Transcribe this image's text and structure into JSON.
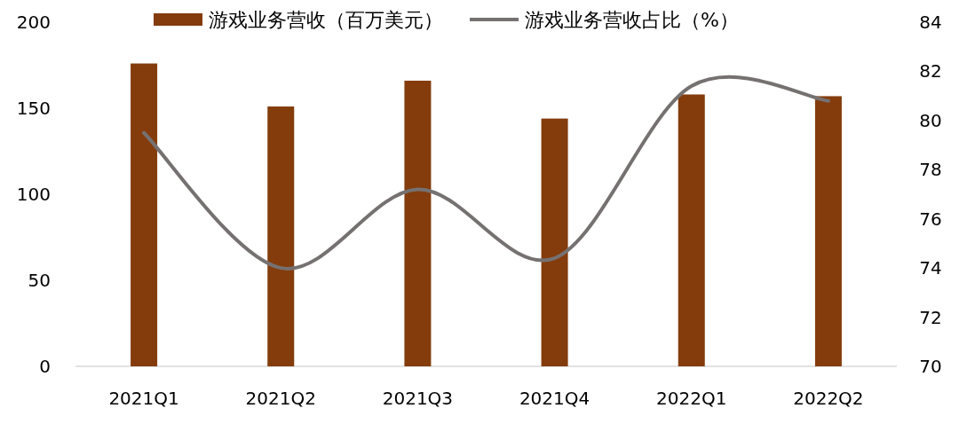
{
  "chart_data": {
    "type": "bar",
    "categories": [
      "2021Q1",
      "2021Q2",
      "2021Q3",
      "2021Q4",
      "2022Q1",
      "2022Q2"
    ],
    "series": [
      {
        "name": "游戏业务营收（百万美元）",
        "color": "#843c0c",
        "values": [
          176,
          151,
          166,
          144,
          158,
          157
        ]
      },
      {
        "name": "游戏业务营收占比（%）",
        "type": "line",
        "axis": "y2",
        "color": "#767171",
        "values": [
          79.5,
          74.0,
          77.2,
          74.4,
          81.4,
          80.8
        ]
      }
    ],
    "ylim": [
      0,
      200
    ],
    "yticks": [
      0,
      50,
      100,
      150,
      200
    ],
    "y2lim": [
      70,
      84
    ],
    "y2ticks": [
      70,
      72,
      74,
      76,
      78,
      80,
      82,
      84
    ],
    "legend": "top",
    "grid": false
  }
}
